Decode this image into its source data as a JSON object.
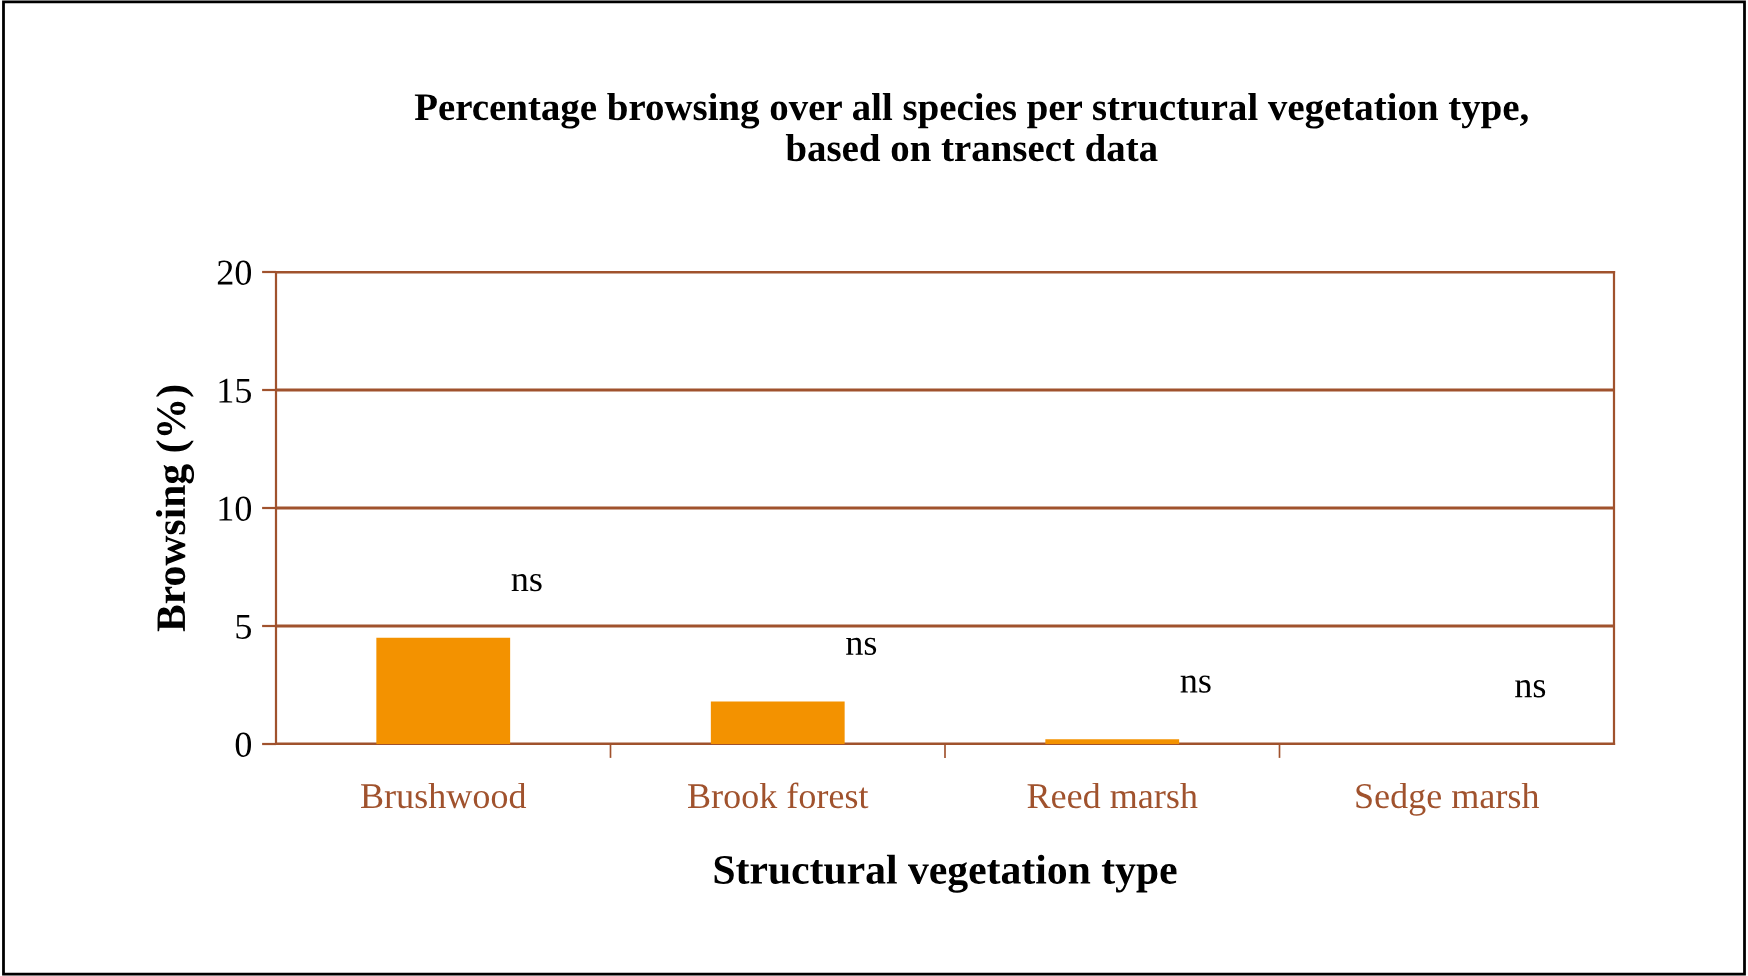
{
  "chart_data": {
    "type": "bar",
    "title": "Percentage browsing over all species per structural vegetation type,\nbased on transect data",
    "xlabel": "Structural vegetation type",
    "ylabel": "Browsing (%)",
    "categories": [
      "Brushwood",
      "Brook forest",
      "Reed marsh",
      "Sedge marsh"
    ],
    "values": [
      4.5,
      1.8,
      0.2,
      0
    ],
    "color": "#f39200",
    "ylim": [
      0,
      20
    ],
    "yticks": [
      0,
      5,
      10,
      15,
      20
    ],
    "grid": "y",
    "annotations": [
      "ns",
      "ns",
      "ns",
      "ns"
    ]
  }
}
